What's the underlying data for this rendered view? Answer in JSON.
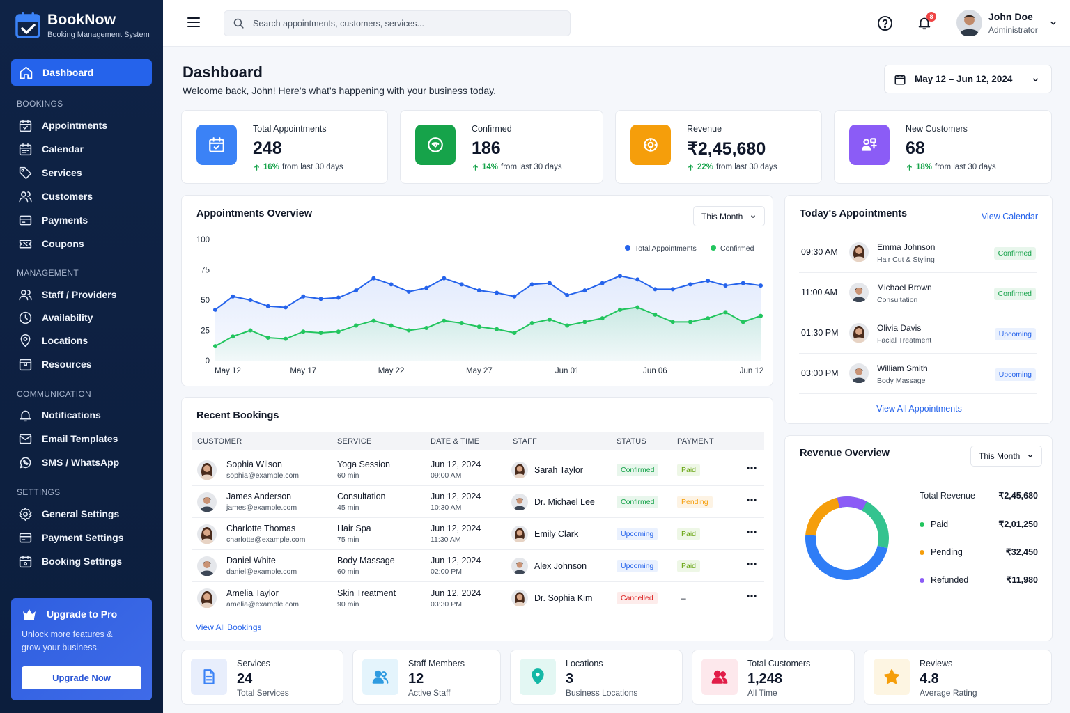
{
  "brand": {
    "name": "BookNow",
    "tagline": "Booking Management System"
  },
  "sidebar": {
    "dashboard": "Dashboard",
    "sections": [
      {
        "title": "BOOKINGS",
        "items": [
          "Appointments",
          "Calendar",
          "Services",
          "Customers",
          "Payments",
          "Coupons"
        ]
      },
      {
        "title": "MANAGEMENT",
        "items": [
          "Staff / Providers",
          "Availability",
          "Locations",
          "Resources"
        ]
      },
      {
        "title": "COMMUNICATION",
        "items": [
          "Notifications",
          "Email Templates",
          "SMS / WhatsApp"
        ]
      },
      {
        "title": "SETTINGS",
        "items": [
          "General Settings",
          "Payment Settings",
          "Booking Settings"
        ]
      }
    ],
    "promo": {
      "title": "Upgrade to Pro",
      "text": "Unlock more features & grow your business.",
      "button": "Upgrade Now"
    }
  },
  "topbar": {
    "search_placeholder": "Search appointments, customers, services...",
    "notifications": "8",
    "user_name": "John Doe",
    "user_role": "Administrator"
  },
  "page": {
    "title": "Dashboard",
    "subtitle": "Welcome back, John! Here's what's happening with your business today.",
    "date_range": "May 12 – Jun 12, 2024"
  },
  "stats": [
    {
      "label": "Total Appointments",
      "value": "248",
      "change": "16%",
      "suffix": "from last 30 days",
      "color": "#3b82f6"
    },
    {
      "label": "Confirmed",
      "value": "186",
      "change": "14%",
      "suffix": "from last 30 days",
      "color": "#16a34a"
    },
    {
      "label": "Revenue",
      "value": "₹2,45,680",
      "change": "22%",
      "suffix": "from last 30 days",
      "color": "#f59e0b"
    },
    {
      "label": "New Customers",
      "value": "68",
      "change": "18%",
      "suffix": "from last 30 days",
      "color": "#8b5cf6"
    }
  ],
  "overview": {
    "title": "Appointments Overview",
    "filter": "This Month"
  },
  "chart_data": {
    "type": "area",
    "title": "Appointments Overview",
    "x": [
      "May 12",
      "May 13",
      "May 14",
      "May 15",
      "May 16",
      "May 17",
      "May 18",
      "May 19",
      "May 20",
      "May 21",
      "May 22",
      "May 23",
      "May 24",
      "May 25",
      "May 26",
      "May 27",
      "May 28",
      "May 29",
      "May 30",
      "May 31",
      "Jun 01",
      "Jun 02",
      "Jun 03",
      "Jun 04",
      "Jun 05",
      "Jun 06",
      "Jun 07",
      "Jun 08",
      "Jun 09",
      "Jun 10",
      "Jun 11",
      "Jun 12"
    ],
    "tick_labels": [
      "May 12",
      "May 17",
      "May 22",
      "May 27",
      "Jun 01",
      "Jun 06",
      "Jun 12"
    ],
    "ylim": [
      0,
      100
    ],
    "yticks": [
      100,
      75,
      50,
      25,
      0
    ],
    "legend_position": "top-right",
    "series": [
      {
        "name": "Total Appointments",
        "color": "#2563eb",
        "values": [
          42,
          53,
          50,
          45,
          44,
          53,
          51,
          52,
          58,
          68,
          63,
          57,
          60,
          68,
          63,
          58,
          56,
          53,
          63,
          64,
          54,
          58,
          64,
          70,
          67,
          59,
          59,
          63,
          66,
          62,
          64,
          62
        ]
      },
      {
        "name": "Confirmed",
        "color": "#22c55e",
        "values": [
          12,
          20,
          25,
          19,
          18,
          24,
          23,
          24,
          29,
          33,
          29,
          25,
          27,
          33,
          31,
          28,
          26,
          23,
          31,
          34,
          29,
          32,
          35,
          42,
          44,
          38,
          32,
          32,
          35,
          40,
          32,
          37
        ]
      }
    ]
  },
  "today": {
    "title": "Today's Appointments",
    "view_link": "View Calendar",
    "all_link": "View All Appointments",
    "items": [
      {
        "time": "09:30 AM",
        "name": "Emma Johnson",
        "service": "Hair Cut & Styling",
        "status": "Confirmed",
        "av": "f"
      },
      {
        "time": "11:00 AM",
        "name": "Michael Brown",
        "service": "Consultation",
        "status": "Confirmed",
        "av": "m"
      },
      {
        "time": "01:30 PM",
        "name": "Olivia Davis",
        "service": "Facial Treatment",
        "status": "Upcoming",
        "av": "f"
      },
      {
        "time": "03:00 PM",
        "name": "William Smith",
        "service": "Body Massage",
        "status": "Upcoming",
        "av": "m"
      }
    ]
  },
  "bookings": {
    "title": "Recent Bookings",
    "view_all": "View All Bookings",
    "headers": [
      "CUSTOMER",
      "SERVICE",
      "DATE & TIME",
      "STAFF",
      "STATUS",
      "PAYMENT"
    ],
    "rows": [
      {
        "name": "Sophia Wilson",
        "email": "sophia@example.com",
        "service": "Yoga Session",
        "dur": "60 min",
        "date": "Jun 12, 2024",
        "time": "09:00 AM",
        "staff": "Sarah Taylor",
        "status": "Confirmed",
        "payment": "Paid",
        "av": "f",
        "sav": "f"
      },
      {
        "name": "James Anderson",
        "email": "james@example.com",
        "service": "Consultation",
        "dur": "45 min",
        "date": "Jun 12, 2024",
        "time": "10:30 AM",
        "staff": "Dr. Michael Lee",
        "status": "Confirmed",
        "payment": "Pending",
        "av": "m",
        "sav": "m"
      },
      {
        "name": "Charlotte Thomas",
        "email": "charlotte@example.com",
        "service": "Hair Spa",
        "dur": "75 min",
        "date": "Jun 12, 2024",
        "time": "11:30 AM",
        "staff": "Emily Clark",
        "status": "Upcoming",
        "payment": "Paid",
        "av": "f",
        "sav": "f"
      },
      {
        "name": "Daniel White",
        "email": "daniel@example.com",
        "service": "Body Massage",
        "dur": "60 min",
        "date": "Jun 12, 2024",
        "time": "02:00 PM",
        "staff": "Alex Johnson",
        "status": "Upcoming",
        "payment": "Paid",
        "av": "m",
        "sav": "m"
      },
      {
        "name": "Amelia Taylor",
        "email": "amelia@example.com",
        "service": "Skin Treatment",
        "dur": "90 min",
        "date": "Jun 12, 2024",
        "time": "03:30 PM",
        "staff": "Dr. Sophia Kim",
        "status": "Cancelled",
        "payment": "–",
        "av": "f",
        "sav": "f"
      }
    ]
  },
  "revenue": {
    "title": "Revenue Overview",
    "filter": "This Month",
    "total_label": "Total Revenue",
    "total": "₹2,45,680",
    "items": [
      {
        "label": "Paid",
        "value": "₹2,01,250",
        "amount": 201250,
        "color": "#22c55e"
      },
      {
        "label": "Pending",
        "value": "₹32,450",
        "amount": 32450,
        "color": "#f59e0b"
      },
      {
        "label": "Refunded",
        "value": "₹11,980",
        "amount": 11980,
        "color": "#8b5cf6"
      }
    ]
  },
  "bottom": [
    {
      "label": "Services",
      "value": "24",
      "sub": "Total Services",
      "icon": "document-icon",
      "color": "#3b82f6",
      "bg": "#e8eefc"
    },
    {
      "label": "Staff Members",
      "value": "12",
      "sub": "Active Staff",
      "icon": "users-icon",
      "color": "#2f9be0",
      "bg": "#e4f4fc"
    },
    {
      "label": "Locations",
      "value": "3",
      "sub": "Business Locations",
      "icon": "location-pin-icon",
      "color": "#14b8a6",
      "bg": "#e3f7f3"
    },
    {
      "label": "Total Customers",
      "value": "1,248",
      "sub": "All Time",
      "icon": "customers-icon",
      "color": "#e11d48",
      "bg": "#fde8ec"
    },
    {
      "label": "Reviews",
      "value": "4.8",
      "sub": "Average Rating",
      "icon": "star-icon",
      "color": "#f59e0b",
      "bg": "#fdf5e2"
    }
  ]
}
